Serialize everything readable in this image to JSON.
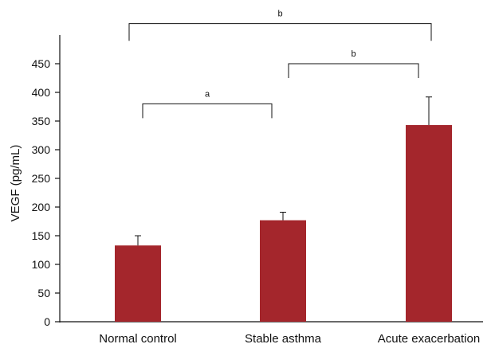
{
  "chart_data": {
    "type": "bar",
    "title": "",
    "xlabel": "",
    "ylabel": "VEGF (pg/mL)",
    "ylim": [
      0,
      450
    ],
    "yticks": [
      0,
      50,
      100,
      150,
      200,
      250,
      300,
      350,
      400,
      450
    ],
    "categories": [
      "Normal control",
      "Stable asthma",
      "Acute exacerbation"
    ],
    "values": [
      133,
      177,
      343
    ],
    "errors": [
      17,
      14,
      49
    ],
    "bar_color": "#A4262C",
    "grid": false,
    "significance": [
      {
        "from": 0,
        "to": 1,
        "label": "a",
        "level": 380,
        "drop": 25
      },
      {
        "from": 1,
        "to": 2,
        "label": "b",
        "level": 450,
        "drop": 25
      },
      {
        "from": 0,
        "to": 2,
        "label": "b",
        "level": 520,
        "drop": 30
      }
    ]
  }
}
